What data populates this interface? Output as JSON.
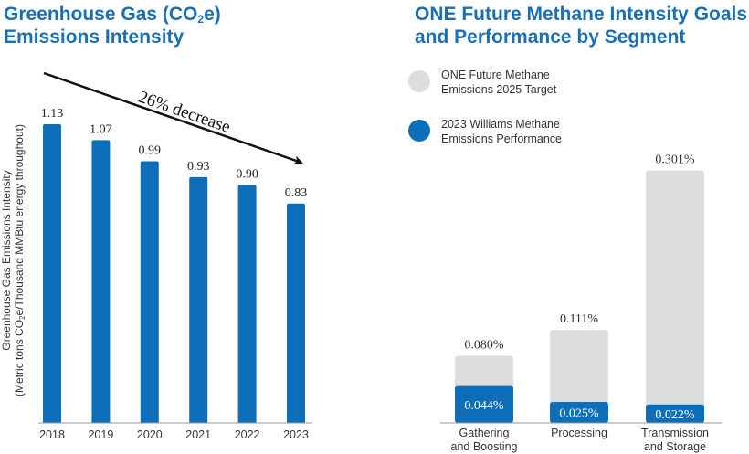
{
  "left_chart": {
    "title_part1": "Greenhouse Gas (CO",
    "title_sub": "2",
    "title_part2": "e)",
    "title_line2": "Emissions Intensity",
    "ylabel_line1": "Greenhouse Gas Emissions Intensity",
    "ylabel_line2_part1": "(Metric tons CO",
    "ylabel_line2_sub": "2",
    "ylabel_line2_part2": "e/Thousand MMBtu energy throughout)",
    "annotation": "26% decrease"
  },
  "right_chart": {
    "title_line1": "ONE Future Methane Intensity Goals",
    "title_line2": "and Performance by Segment",
    "legend": [
      {
        "line1": "ONE Future Methane",
        "line2": "Emissions 2025 Target",
        "color": "#dcdddf"
      },
      {
        "line1": "2023 Williams Methane",
        "line2": "Emissions Performance",
        "color": "#0d6fba"
      }
    ],
    "categories": [
      {
        "line1": "Gathering",
        "line2": "and Boosting"
      },
      {
        "line1": "Processing",
        "line2": ""
      },
      {
        "line1": "Transmission",
        "line2": "and Storage"
      }
    ]
  },
  "chart_data": [
    {
      "type": "bar",
      "title": "Greenhouse Gas (CO2e) Emissions Intensity",
      "xlabel": "",
      "ylabel": "Greenhouse Gas Emissions Intensity (Metric tons CO2e/Thousand MMBtu energy throughout)",
      "categories": [
        "2018",
        "2019",
        "2020",
        "2021",
        "2022",
        "2023"
      ],
      "values": [
        1.13,
        1.07,
        0.99,
        0.93,
        0.9,
        0.83
      ],
      "value_labels": [
        "1.13",
        "1.07",
        "0.99",
        "0.93",
        "0.90",
        "0.83"
      ],
      "annotation": "26% decrease",
      "ylim": [
        0,
        1.2
      ],
      "grid": false,
      "colors": {
        "bar": "#0d6fba"
      }
    },
    {
      "type": "bar",
      "title": "ONE Future Methane Intensity Goals and Performance by Segment",
      "xlabel": "",
      "ylabel": "",
      "categories": [
        "Gathering and Boosting",
        "Processing",
        "Transmission and Storage"
      ],
      "series": [
        {
          "name": "ONE Future Methane Emissions 2025 Target",
          "values": [
            0.08,
            0.111,
            0.301
          ],
          "labels": [
            "0.080%",
            "0.111%",
            "0.301%"
          ],
          "color": "#dcdddf"
        },
        {
          "name": "2023 Williams Methane Emissions Performance",
          "values": [
            0.044,
            0.025,
            0.022
          ],
          "labels": [
            "0.044%",
            "0.025%",
            "0.022%"
          ],
          "color": "#0d6fba"
        }
      ],
      "layout": "overlapping",
      "legend": "top-left",
      "grid": false
    }
  ]
}
